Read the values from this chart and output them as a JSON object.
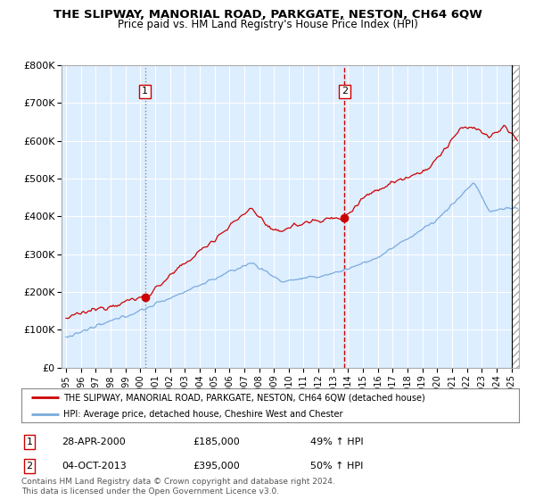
{
  "title": "THE SLIPWAY, MANORIAL ROAD, PARKGATE, NESTON, CH64 6QW",
  "subtitle": "Price paid vs. HM Land Registry's House Price Index (HPI)",
  "legend_line1": "THE SLIPWAY, MANORIAL ROAD, PARKGATE, NESTON, CH64 6QW (detached house)",
  "legend_line2": "HPI: Average price, detached house, Cheshire West and Chester",
  "table_rows": [
    {
      "num": "1",
      "date": "28-APR-2000",
      "price": "£185,000",
      "hpi": "49% ↑ HPI"
    },
    {
      "num": "2",
      "date": "04-OCT-2013",
      "price": "£395,000",
      "hpi": "50% ↑ HPI"
    }
  ],
  "footnote": "Contains HM Land Registry data © Crown copyright and database right 2024.\nThis data is licensed under the Open Government Licence v3.0.",
  "sale1_x": 2000.32,
  "sale1_y": 185000,
  "sale2_x": 2013.75,
  "sale2_y": 395000,
  "ylim": [
    0,
    800000
  ],
  "xlim_start": 1994.7,
  "xlim_end": 2025.5,
  "yticks": [
    0,
    100000,
    200000,
    300000,
    400000,
    500000,
    600000,
    700000,
    800000
  ],
  "ytick_labels": [
    "£0",
    "£100K",
    "£200K",
    "£300K",
    "£400K",
    "£500K",
    "£600K",
    "£700K",
    "£800K"
  ],
  "xticks": [
    1995,
    1996,
    1997,
    1998,
    1999,
    2000,
    2001,
    2002,
    2003,
    2004,
    2005,
    2006,
    2007,
    2008,
    2009,
    2010,
    2011,
    2012,
    2013,
    2014,
    2015,
    2016,
    2017,
    2018,
    2019,
    2020,
    2021,
    2022,
    2023,
    2024,
    2025
  ],
  "red_color": "#cc0000",
  "blue_color": "#7aaadd",
  "bg_color": "#ddeeff",
  "grid_color": "#ffffff",
  "vline1_color": "#888888",
  "vline2_color": "#cc0000",
  "hatch_x": 2025.0
}
